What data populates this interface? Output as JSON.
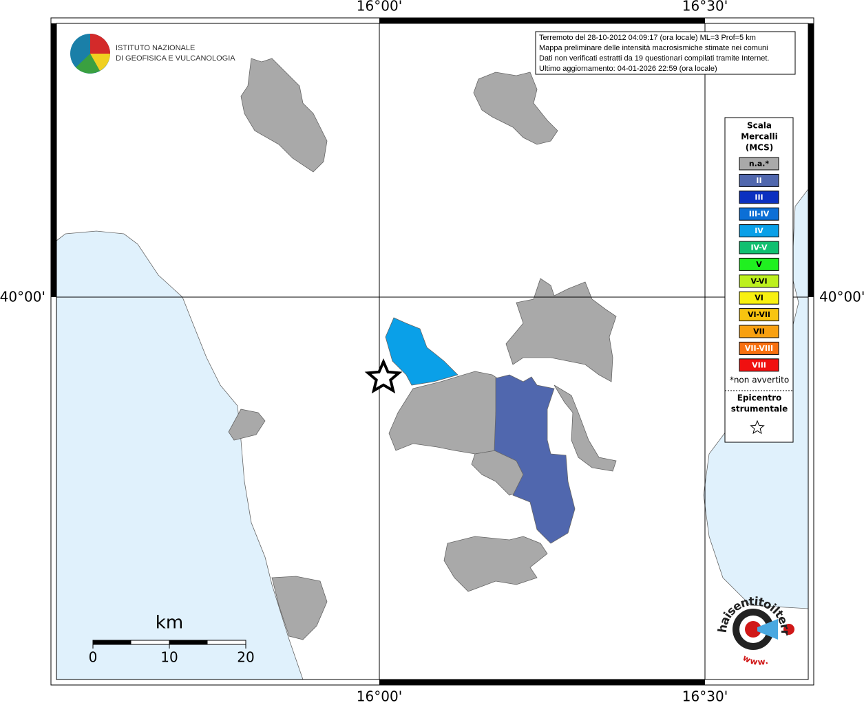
{
  "axes": {
    "top": [
      "16°00'",
      "16°30'"
    ],
    "bottom": [
      "16°00'",
      "16°30'"
    ],
    "left": [
      "40°00'"
    ],
    "right": [
      "40°00'"
    ]
  },
  "logo": {
    "line1": "ISTITUTO NAZIONALE",
    "line2": "DI GEOFISICA E VULCANOLOGIA"
  },
  "info": [
    "Terremoto del 28-10-2012 04:09:17 (ora locale) ML=3 Prof=5 km",
    "Mappa preliminare delle intensità macrosismiche stimate nei comuni",
    "Dati non verificati estratti da 19 questionari compilati tramite Internet.",
    "Ultimo aggiornamento: 04-01-2026 22:59 (ora locale)"
  ],
  "legend": {
    "title": [
      "Scala",
      "Mercalli",
      "(MCS)"
    ],
    "items": [
      {
        "label": "n.a.*",
        "color": "#a9a9a9"
      },
      {
        "label": "II",
        "color": "#5067ae"
      },
      {
        "label": "III",
        "color": "#0b30c0"
      },
      {
        "label": "III-IV",
        "color": "#0c6fd6"
      },
      {
        "label": "IV",
        "color": "#0aa0e8"
      },
      {
        "label": "IV-V",
        "color": "#10c070"
      },
      {
        "label": "V",
        "color": "#20f020"
      },
      {
        "label": "V-VI",
        "color": "#bcf01e"
      },
      {
        "label": "VI",
        "color": "#f8f010"
      },
      {
        "label": "VI-VII",
        "color": "#f8c410"
      },
      {
        "label": "VII",
        "color": "#f8a010"
      },
      {
        "label": "VII-VIII",
        "color": "#f87010"
      },
      {
        "label": "VIII",
        "color": "#f01010"
      }
    ],
    "note": "*non avvertito",
    "epicenter": [
      "Epicentro",
      "strumentale"
    ]
  },
  "scale_bar": {
    "unit": "km",
    "ticks": [
      "0",
      "10",
      "20"
    ]
  },
  "badge": {
    "text": "haisentitoilterremoto.it",
    "www": "www."
  }
}
